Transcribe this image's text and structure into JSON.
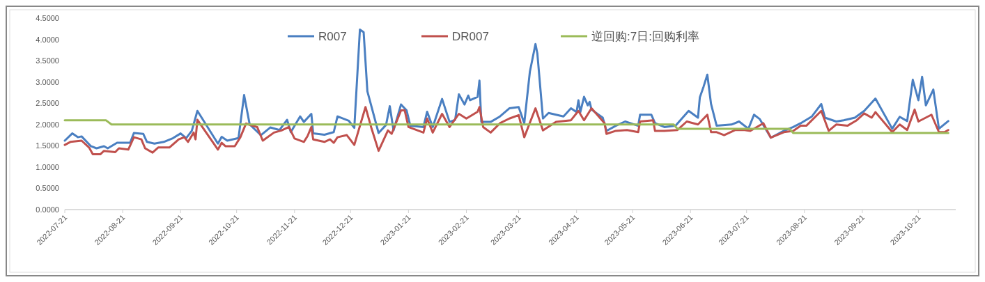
{
  "chart_data": {
    "type": "line",
    "xlim": [
      "2022-07-21",
      "2023-11-10"
    ],
    "xticks": [
      "2022-07-21",
      "2022-08-21",
      "2022-09-21",
      "2022-10-21",
      "2022-11-21",
      "2022-12-21",
      "2023-01-21",
      "2023-02-21",
      "2023-03-21",
      "2023-04-21",
      "2023-05-21",
      "2023-06-21",
      "2023-07-21",
      "2023-08-21",
      "2023-09-21",
      "2023-10-21"
    ],
    "ylim": [
      0,
      4.5
    ],
    "yticks": [
      {
        "value": 0,
        "label": "0.0000"
      },
      {
        "value": 0.5,
        "label": "0.5000"
      },
      {
        "value": 1,
        "label": "1.0000"
      },
      {
        "value": 1.5,
        "label": "1.5000"
      },
      {
        "value": 2,
        "label": "2.0000"
      },
      {
        "value": 2.5,
        "label": "2.5000"
      },
      {
        "value": 3,
        "label": "3.0000"
      },
      {
        "value": 3.5,
        "label": "3.5000"
      },
      {
        "value": 4,
        "label": "4.0000"
      },
      {
        "value": 4.5,
        "label": "4.5000"
      }
    ],
    "grid": false,
    "legend": "top",
    "marker": "none",
    "line_style": "solid",
    "series": [
      {
        "name": "R007",
        "color": "#4a7fc1",
        "x": [
          "2022-07-21",
          "2022-07-25",
          "2022-07-28",
          "2022-07-30",
          "2022-08-04",
          "2022-08-07",
          "2022-08-11",
          "2022-08-13",
          "2022-08-18",
          "2022-08-25",
          "2022-08-27",
          "2022-09-01",
          "2022-09-03",
          "2022-09-07",
          "2022-09-12",
          "2022-09-17",
          "2022-09-21",
          "2022-09-24",
          "2022-09-27",
          "2022-09-30",
          "2022-10-11",
          "2022-10-13",
          "2022-10-16",
          "2022-10-22",
          "2022-10-25",
          "2022-10-28",
          "2022-11-03",
          "2022-11-08",
          "2022-11-13",
          "2022-11-17",
          "2022-11-19",
          "2022-11-24",
          "2022-11-26",
          "2022-11-30",
          "2022-12-01",
          "2022-12-07",
          "2022-12-12",
          "2022-12-14",
          "2022-12-20",
          "2022-12-23",
          "2022-12-26",
          "2022-12-28",
          "2022-12-30",
          "2023-01-05",
          "2023-01-09",
          "2023-01-11",
          "2023-01-13",
          "2023-01-17",
          "2023-01-20",
          "2023-01-22",
          "2023-01-29",
          "2023-01-31",
          "2023-02-03",
          "2023-02-08",
          "2023-02-12",
          "2023-02-15",
          "2023-02-17",
          "2023-02-20",
          "2023-02-22",
          "2023-02-23",
          "2023-02-27",
          "2023-02-28",
          "2023-03-01",
          "2023-03-06",
          "2023-03-11",
          "2023-03-16",
          "2023-03-21",
          "2023-03-24",
          "2023-03-27",
          "2023-03-30",
          "2023-03-31",
          "2023-04-03",
          "2023-04-06",
          "2023-04-14",
          "2023-04-18",
          "2023-04-21",
          "2023-04-22",
          "2023-04-23",
          "2023-04-25",
          "2023-04-27",
          "2023-04-28",
          "2023-04-29",
          "2023-05-05",
          "2023-05-07",
          "2023-05-12",
          "2023-05-17",
          "2023-05-24",
          "2023-05-25",
          "2023-05-31",
          "2023-06-02",
          "2023-06-07",
          "2023-06-13",
          "2023-06-20",
          "2023-06-25",
          "2023-06-26",
          "2023-06-28",
          "2023-06-30",
          "2023-07-02",
          "2023-07-05",
          "2023-07-13",
          "2023-07-17",
          "2023-07-22",
          "2023-07-25",
          "2023-07-28",
          "2023-08-03",
          "2023-08-10",
          "2023-08-15",
          "2023-08-19",
          "2023-08-25",
          "2023-08-30",
          "2023-09-01",
          "2023-09-07",
          "2023-09-11",
          "2023-09-17",
          "2023-09-22",
          "2023-09-28",
          "2023-10-07",
          "2023-10-11",
          "2023-10-15",
          "2023-10-18",
          "2023-10-21",
          "2023-10-23",
          "2023-10-25",
          "2023-10-29",
          "2023-11-01",
          "2023-11-06"
        ],
        "values": [
          1.62,
          1.79,
          1.7,
          1.72,
          1.49,
          1.44,
          1.49,
          1.44,
          1.57,
          1.57,
          1.8,
          1.78,
          1.59,
          1.55,
          1.59,
          1.68,
          1.79,
          1.68,
          1.85,
          2.32,
          1.55,
          1.71,
          1.62,
          1.68,
          2.69,
          2.0,
          1.75,
          1.93,
          1.87,
          2.11,
          1.82,
          2.19,
          2.06,
          2.25,
          1.79,
          1.76,
          1.82,
          2.19,
          2.09,
          1.92,
          4.23,
          4.17,
          2.78,
          1.8,
          1.99,
          2.43,
          1.86,
          2.47,
          2.33,
          1.97,
          1.94,
          2.3,
          1.94,
          2.6,
          2.06,
          2.11,
          2.71,
          2.47,
          2.68,
          2.57,
          2.65,
          3.03,
          2.06,
          2.06,
          2.19,
          2.38,
          2.41,
          2.03,
          3.24,
          3.89,
          3.67,
          2.14,
          2.27,
          2.19,
          2.38,
          2.29,
          2.57,
          2.29,
          2.65,
          2.45,
          2.53,
          2.35,
          2.16,
          1.85,
          1.97,
          2.07,
          1.97,
          2.23,
          2.23,
          2.03,
          1.94,
          1.97,
          2.32,
          2.16,
          2.64,
          2.89,
          3.17,
          2.48,
          1.97,
          2.0,
          2.07,
          1.9,
          2.23,
          2.13,
          1.69,
          1.85,
          1.94,
          2.03,
          2.19,
          2.48,
          2.16,
          2.07,
          2.1,
          2.16,
          2.32,
          2.61,
          1.9,
          2.18,
          2.08,
          3.05,
          2.57,
          3.12,
          2.45,
          2.82,
          1.9,
          2.08
        ]
      },
      {
        "name": "DR007",
        "color": "#c0504d",
        "x": [
          "2022-07-21",
          "2022-07-24",
          "2022-07-30",
          "2022-08-03",
          "2022-08-05",
          "2022-08-09",
          "2022-08-11",
          "2022-08-17",
          "2022-08-19",
          "2022-08-24",
          "2022-08-27",
          "2022-08-31",
          "2022-09-02",
          "2022-09-06",
          "2022-09-09",
          "2022-09-15",
          "2022-09-20",
          "2022-09-23",
          "2022-09-25",
          "2022-09-28",
          "2022-09-29",
          "2022-09-30",
          "2022-10-11",
          "2022-10-13",
          "2022-10-15",
          "2022-10-20",
          "2022-10-23",
          "2022-10-26",
          "2022-11-01",
          "2022-11-04",
          "2022-11-10",
          "2022-11-14",
          "2022-11-18",
          "2022-11-21",
          "2022-11-26",
          "2022-11-28",
          "2022-11-30",
          "2022-12-01",
          "2022-12-07",
          "2022-12-10",
          "2022-12-12",
          "2022-12-14",
          "2022-12-19",
          "2022-12-23",
          "2022-12-29",
          "2023-01-01",
          "2023-01-05",
          "2023-01-10",
          "2023-01-12",
          "2023-01-17",
          "2023-01-19",
          "2023-01-21",
          "2023-01-29",
          "2023-01-31",
          "2023-02-03",
          "2023-02-08",
          "2023-02-12",
          "2023-02-17",
          "2023-02-21",
          "2023-02-27",
          "2023-02-28",
          "2023-03-02",
          "2023-03-06",
          "2023-03-11",
          "2023-03-16",
          "2023-03-21",
          "2023-03-24",
          "2023-03-30",
          "2023-04-03",
          "2023-04-10",
          "2023-04-18",
          "2023-04-22",
          "2023-04-25",
          "2023-04-29",
          "2023-05-06",
          "2023-05-07",
          "2023-05-12",
          "2023-05-18",
          "2023-05-24",
          "2023-05-25",
          "2023-06-01",
          "2023-06-02",
          "2023-06-07",
          "2023-06-14",
          "2023-06-19",
          "2023-06-25",
          "2023-06-30",
          "2023-07-02",
          "2023-07-05",
          "2023-07-09",
          "2023-07-15",
          "2023-07-20",
          "2023-07-23",
          "2023-07-30",
          "2023-08-03",
          "2023-08-10",
          "2023-08-15",
          "2023-08-19",
          "2023-08-22",
          "2023-08-30",
          "2023-09-03",
          "2023-09-07",
          "2023-09-13",
          "2023-09-18",
          "2023-09-22",
          "2023-09-26",
          "2023-09-28",
          "2023-10-07",
          "2023-10-11",
          "2023-10-15",
          "2023-10-19",
          "2023-10-21",
          "2023-10-28",
          "2023-11-01",
          "2023-11-04",
          "2023-11-06"
        ],
        "values": [
          1.52,
          1.59,
          1.62,
          1.46,
          1.3,
          1.3,
          1.38,
          1.35,
          1.44,
          1.41,
          1.7,
          1.65,
          1.44,
          1.34,
          1.46,
          1.46,
          1.65,
          1.7,
          1.59,
          1.81,
          1.65,
          2.11,
          1.41,
          1.57,
          1.49,
          1.49,
          1.7,
          2.02,
          1.94,
          1.62,
          1.81,
          1.86,
          1.94,
          1.67,
          1.59,
          1.73,
          1.94,
          1.65,
          1.59,
          1.65,
          1.57,
          1.7,
          1.75,
          1.52,
          2.41,
          1.94,
          1.38,
          1.86,
          1.78,
          2.33,
          2.33,
          1.94,
          1.81,
          2.14,
          1.81,
          2.25,
          1.94,
          2.25,
          2.14,
          2.3,
          2.41,
          1.94,
          1.81,
          2.03,
          2.14,
          2.22,
          1.7,
          2.38,
          1.86,
          2.06,
          2.1,
          2.32,
          2.1,
          2.38,
          2.03,
          1.78,
          1.85,
          1.87,
          1.82,
          2.07,
          2.1,
          1.85,
          1.85,
          1.87,
          2.07,
          2.0,
          2.23,
          1.82,
          1.82,
          1.75,
          1.87,
          1.87,
          1.85,
          2.03,
          1.69,
          1.82,
          1.85,
          1.97,
          1.97,
          2.32,
          1.85,
          2.0,
          1.97,
          2.1,
          2.26,
          2.16,
          2.29,
          1.82,
          2.0,
          1.87,
          2.35,
          2.07,
          2.23,
          1.82,
          1.82,
          1.87
        ]
      },
      {
        "name": "逆回购:7日:回购利率",
        "color": "#9bbb59",
        "x": [
          "2022-07-21",
          "2022-08-12",
          "2022-08-15",
          "2023-06-12",
          "2023-06-14",
          "2023-08-13",
          "2023-08-15",
          "2023-11-06"
        ],
        "values": [
          2.1,
          2.1,
          2.0,
          2.0,
          1.9,
          1.9,
          1.8,
          1.8
        ]
      }
    ]
  }
}
